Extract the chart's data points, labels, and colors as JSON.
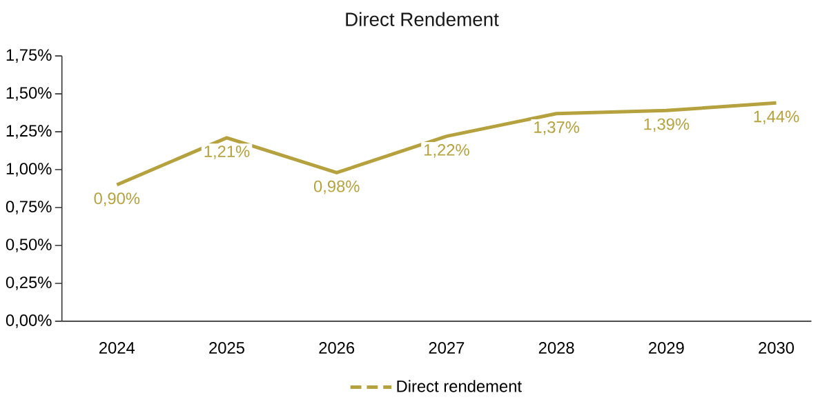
{
  "chart_data": {
    "type": "line",
    "title": "Direct Rendement",
    "categories": [
      "2024",
      "2025",
      "2026",
      "2027",
      "2028",
      "2029",
      "2030"
    ],
    "series": [
      {
        "name": "Direct rendement",
        "color": "#b5a23f",
        "values": [
          0.9,
          1.21,
          0.98,
          1.22,
          1.37,
          1.39,
          1.44
        ],
        "value_labels": [
          "0,90%",
          "1,21%",
          "0,98%",
          "1,22%",
          "1,37%",
          "1,39%",
          "1,44%"
        ]
      }
    ],
    "ylim": [
      0,
      1.75
    ],
    "yticks": [
      {
        "value": 0,
        "label": "0,00%"
      },
      {
        "value": 0.25,
        "label": "0,25%"
      },
      {
        "value": 0.5,
        "label": "0,50%"
      },
      {
        "value": 0.75,
        "label": "0,75%"
      },
      {
        "value": 1.0,
        "label": "1,00%"
      },
      {
        "value": 1.25,
        "label": "1,25%"
      },
      {
        "value": 1.5,
        "label": "1,50%"
      },
      {
        "value": 1.75,
        "label": "1,75%"
      }
    ],
    "grid": false,
    "legend": "bottom",
    "marker": "none",
    "line_style": "solid"
  }
}
